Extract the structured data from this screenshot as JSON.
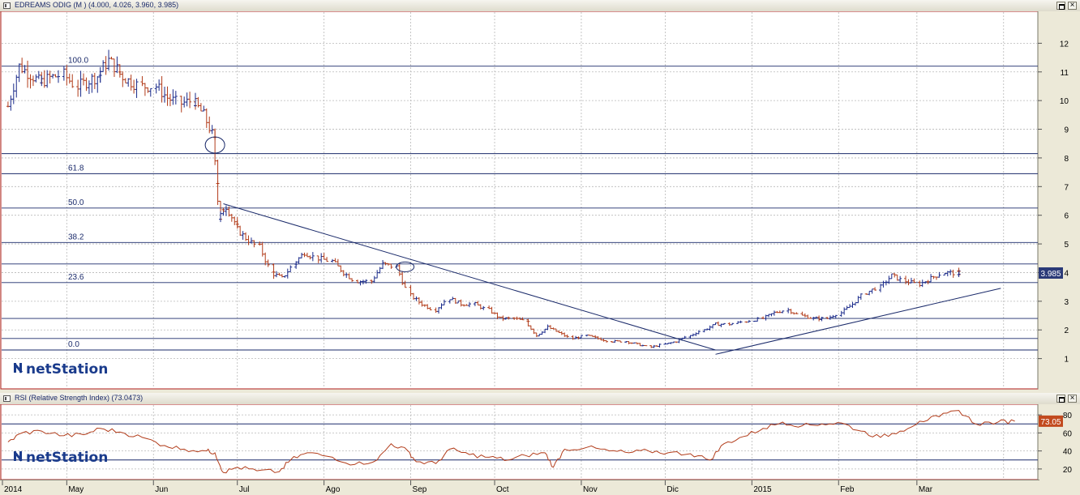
{
  "price_panel": {
    "title": "EDREAMS ODIG (M ) (4.000, 4.026, 3.960, 3.985)",
    "last_value_label": "3.985",
    "logo_text": "netStation"
  },
  "rsi_panel": {
    "title": "RSI (Relative Strength Index) (73.0473)",
    "last_value_label": "73.05",
    "logo_text": "netStation"
  },
  "x_axis": {
    "labels": [
      "2014",
      "May",
      "Jun",
      "Jul",
      "Ago",
      "Sep",
      "Oct",
      "Nov",
      "Dic",
      "2015",
      "Feb",
      "Mar"
    ]
  },
  "colors": {
    "up": "#1a2a8a",
    "down": "#b23c1a",
    "rsi_line": "#b23c1a",
    "grid": "#b8b8b8",
    "fib": "#1a2a6a",
    "accent": "#2b3a78",
    "rsi_badge": "#c24a1e"
  },
  "chart_data": [
    {
      "type": "bar",
      "subtype": "ohlc",
      "title": "EDREAMS ODIG (M ) (4.000, 4.026, 3.960, 3.985)",
      "ylim": [
        0,
        13
      ],
      "yticks": [
        1,
        2,
        3,
        4,
        5,
        6,
        7,
        8,
        9,
        10,
        11,
        12
      ],
      "grid": true,
      "last_value": 3.985,
      "fibonacci_levels": [
        {
          "label": "100.0",
          "value": 11.2
        },
        {
          "label": "61.8",
          "value": 7.45
        },
        {
          "label": "50.0",
          "value": 6.25
        },
        {
          "label": "38.2",
          "value": 5.05
        },
        {
          "label": "23.6",
          "value": 3.65
        },
        {
          "label": "0.0",
          "value": 1.3
        }
      ],
      "extra_horizontal_levels": [
        8.15,
        4.3,
        2.4,
        1.7
      ],
      "trendlines": [
        {
          "from": {
            "x": "2014-06-26",
            "y": 6.4
          },
          "to": {
            "x": "2014-12-19",
            "y": 1.3
          }
        },
        {
          "from": {
            "x": "2014-12-19",
            "y": 1.15
          },
          "to": {
            "x": "2015-03-31",
            "y": 3.45
          }
        }
      ],
      "annotations": [
        {
          "shape": "ellipse",
          "x": "2014-06-23",
          "y": 8.45
        },
        {
          "shape": "ellipse",
          "x": "2014-08-30",
          "y": 4.2
        }
      ],
      "series_close": [
        {
          "date": "2014-04-10",
          "close": 9.8
        },
        {
          "date": "2014-04-14",
          "close": 11.2
        },
        {
          "date": "2014-04-18",
          "close": 10.9
        },
        {
          "date": "2014-04-22",
          "close": 10.6
        },
        {
          "date": "2014-04-25",
          "close": 10.8
        },
        {
          "date": "2014-04-30",
          "close": 10.9
        },
        {
          "date": "2014-05-05",
          "close": 10.5
        },
        {
          "date": "2014-05-09",
          "close": 10.7
        },
        {
          "date": "2014-05-13",
          "close": 10.9
        },
        {
          "date": "2014-05-16",
          "close": 11.4
        },
        {
          "date": "2014-05-20",
          "close": 11.0
        },
        {
          "date": "2014-05-23",
          "close": 10.7
        },
        {
          "date": "2014-05-28",
          "close": 10.5
        },
        {
          "date": "2014-06-02",
          "close": 10.5
        },
        {
          "date": "2014-06-06",
          "close": 10.1
        },
        {
          "date": "2014-06-11",
          "close": 9.9
        },
        {
          "date": "2014-06-16",
          "close": 10.0
        },
        {
          "date": "2014-06-19",
          "close": 9.5
        },
        {
          "date": "2014-06-23",
          "close": 8.6
        },
        {
          "date": "2014-06-25",
          "close": 5.9
        },
        {
          "date": "2014-06-27",
          "close": 6.3
        },
        {
          "date": "2014-07-01",
          "close": 5.6
        },
        {
          "date": "2014-07-04",
          "close": 5.2
        },
        {
          "date": "2014-07-09",
          "close": 4.9
        },
        {
          "date": "2014-07-14",
          "close": 4.0
        },
        {
          "date": "2014-07-17",
          "close": 3.8
        },
        {
          "date": "2014-07-22",
          "close": 4.3
        },
        {
          "date": "2014-07-25",
          "close": 4.7
        },
        {
          "date": "2014-07-30",
          "close": 4.5
        },
        {
          "date": "2014-08-04",
          "close": 4.4
        },
        {
          "date": "2014-08-08",
          "close": 4.0
        },
        {
          "date": "2014-08-13",
          "close": 3.7
        },
        {
          "date": "2014-08-18",
          "close": 3.7
        },
        {
          "date": "2014-08-22",
          "close": 4.3
        },
        {
          "date": "2014-08-27",
          "close": 4.2
        },
        {
          "date": "2014-09-01",
          "close": 3.2
        },
        {
          "date": "2014-09-05",
          "close": 2.9
        },
        {
          "date": "2014-09-10",
          "close": 2.7
        },
        {
          "date": "2014-09-15",
          "close": 3.1
        },
        {
          "date": "2014-09-19",
          "close": 2.9
        },
        {
          "date": "2014-09-24",
          "close": 2.9
        },
        {
          "date": "2014-09-29",
          "close": 2.7
        },
        {
          "date": "2014-10-03",
          "close": 2.4
        },
        {
          "date": "2014-10-08",
          "close": 2.4
        },
        {
          "date": "2014-10-13",
          "close": 2.3
        },
        {
          "date": "2014-10-16",
          "close": 1.8
        },
        {
          "date": "2014-10-20",
          "close": 2.1
        },
        {
          "date": "2014-10-24",
          "close": 1.9
        },
        {
          "date": "2014-10-29",
          "close": 1.7
        },
        {
          "date": "2014-11-03",
          "close": 1.8
        },
        {
          "date": "2014-11-07",
          "close": 1.7
        },
        {
          "date": "2014-11-12",
          "close": 1.6
        },
        {
          "date": "2014-11-17",
          "close": 1.6
        },
        {
          "date": "2014-11-21",
          "close": 1.5
        },
        {
          "date": "2014-11-26",
          "close": 1.4
        },
        {
          "date": "2014-12-01",
          "close": 1.5
        },
        {
          "date": "2014-12-05",
          "close": 1.6
        },
        {
          "date": "2014-12-10",
          "close": 1.8
        },
        {
          "date": "2014-12-15",
          "close": 2.0
        },
        {
          "date": "2014-12-19",
          "close": 2.2
        },
        {
          "date": "2014-12-24",
          "close": 2.2
        },
        {
          "date": "2014-12-30",
          "close": 2.3
        },
        {
          "date": "2015-01-05",
          "close": 2.4
        },
        {
          "date": "2015-01-09",
          "close": 2.6
        },
        {
          "date": "2015-01-14",
          "close": 2.7
        },
        {
          "date": "2015-01-19",
          "close": 2.5
        },
        {
          "date": "2015-01-23",
          "close": 2.4
        },
        {
          "date": "2015-01-28",
          "close": 2.4
        },
        {
          "date": "2015-02-02",
          "close": 2.6
        },
        {
          "date": "2015-02-06",
          "close": 2.9
        },
        {
          "date": "2015-02-11",
          "close": 3.3
        },
        {
          "date": "2015-02-16",
          "close": 3.5
        },
        {
          "date": "2015-02-20",
          "close": 3.9
        },
        {
          "date": "2015-02-25",
          "close": 3.7
        },
        {
          "date": "2015-03-02",
          "close": 3.6
        },
        {
          "date": "2015-03-06",
          "close": 3.8
        },
        {
          "date": "2015-03-11",
          "close": 4.0
        },
        {
          "date": "2015-03-16",
          "close": 3.985
        }
      ]
    },
    {
      "type": "line",
      "title": "RSI (Relative Strength Index) (73.0473)",
      "ylim": [
        10,
        90
      ],
      "yticks": [
        20,
        40,
        60,
        80
      ],
      "reference_levels": [
        70,
        30
      ],
      "last_value": 73.05,
      "series": [
        {
          "name": "RSI",
          "values": [
            {
              "date": "2014-04-10",
              "v": 50
            },
            {
              "date": "2014-04-15",
              "v": 60
            },
            {
              "date": "2014-04-22",
              "v": 62
            },
            {
              "date": "2014-04-30",
              "v": 57
            },
            {
              "date": "2014-05-07",
              "v": 58
            },
            {
              "date": "2014-05-13",
              "v": 65
            },
            {
              "date": "2014-05-20",
              "v": 61
            },
            {
              "date": "2014-05-28",
              "v": 55
            },
            {
              "date": "2014-06-05",
              "v": 46
            },
            {
              "date": "2014-06-12",
              "v": 42
            },
            {
              "date": "2014-06-20",
              "v": 40
            },
            {
              "date": "2014-06-23",
              "v": 38
            },
            {
              "date": "2014-06-26",
              "v": 16
            },
            {
              "date": "2014-07-01",
              "v": 22
            },
            {
              "date": "2014-07-08",
              "v": 18
            },
            {
              "date": "2014-07-16",
              "v": 17
            },
            {
              "date": "2014-07-20",
              "v": 30
            },
            {
              "date": "2014-07-26",
              "v": 38
            },
            {
              "date": "2014-08-04",
              "v": 33
            },
            {
              "date": "2014-08-12",
              "v": 25
            },
            {
              "date": "2014-08-20",
              "v": 30
            },
            {
              "date": "2014-08-25",
              "v": 48
            },
            {
              "date": "2014-08-31",
              "v": 40
            },
            {
              "date": "2014-09-03",
              "v": 28
            },
            {
              "date": "2014-09-10",
              "v": 26
            },
            {
              "date": "2014-09-15",
              "v": 42
            },
            {
              "date": "2014-09-22",
              "v": 36
            },
            {
              "date": "2014-09-29",
              "v": 33
            },
            {
              "date": "2014-10-06",
              "v": 30
            },
            {
              "date": "2014-10-12",
              "v": 35
            },
            {
              "date": "2014-10-19",
              "v": 38
            },
            {
              "date": "2014-10-22",
              "v": 22
            },
            {
              "date": "2014-10-26",
              "v": 42
            },
            {
              "date": "2014-11-03",
              "v": 44
            },
            {
              "date": "2014-11-11",
              "v": 40
            },
            {
              "date": "2014-11-18",
              "v": 38
            },
            {
              "date": "2014-11-25",
              "v": 40
            },
            {
              "date": "2014-12-02",
              "v": 38
            },
            {
              "date": "2014-12-10",
              "v": 37
            },
            {
              "date": "2014-12-17",
              "v": 30
            },
            {
              "date": "2014-12-22",
              "v": 48
            },
            {
              "date": "2014-12-29",
              "v": 56
            },
            {
              "date": "2015-01-05",
              "v": 65
            },
            {
              "date": "2015-01-12",
              "v": 72
            },
            {
              "date": "2015-01-19",
              "v": 68
            },
            {
              "date": "2015-01-26",
              "v": 70
            },
            {
              "date": "2015-02-02",
              "v": 71
            },
            {
              "date": "2015-02-09",
              "v": 62
            },
            {
              "date": "2015-02-16",
              "v": 55
            },
            {
              "date": "2015-02-23",
              "v": 62
            },
            {
              "date": "2015-03-02",
              "v": 73
            },
            {
              "date": "2015-03-09",
              "v": 78
            },
            {
              "date": "2015-03-16",
              "v": 85
            },
            {
              "date": "2015-03-22",
              "v": 70
            },
            {
              "date": "2015-03-30",
              "v": 72
            },
            {
              "date": "2015-04-05",
              "v": 73.05
            }
          ]
        }
      ]
    }
  ]
}
